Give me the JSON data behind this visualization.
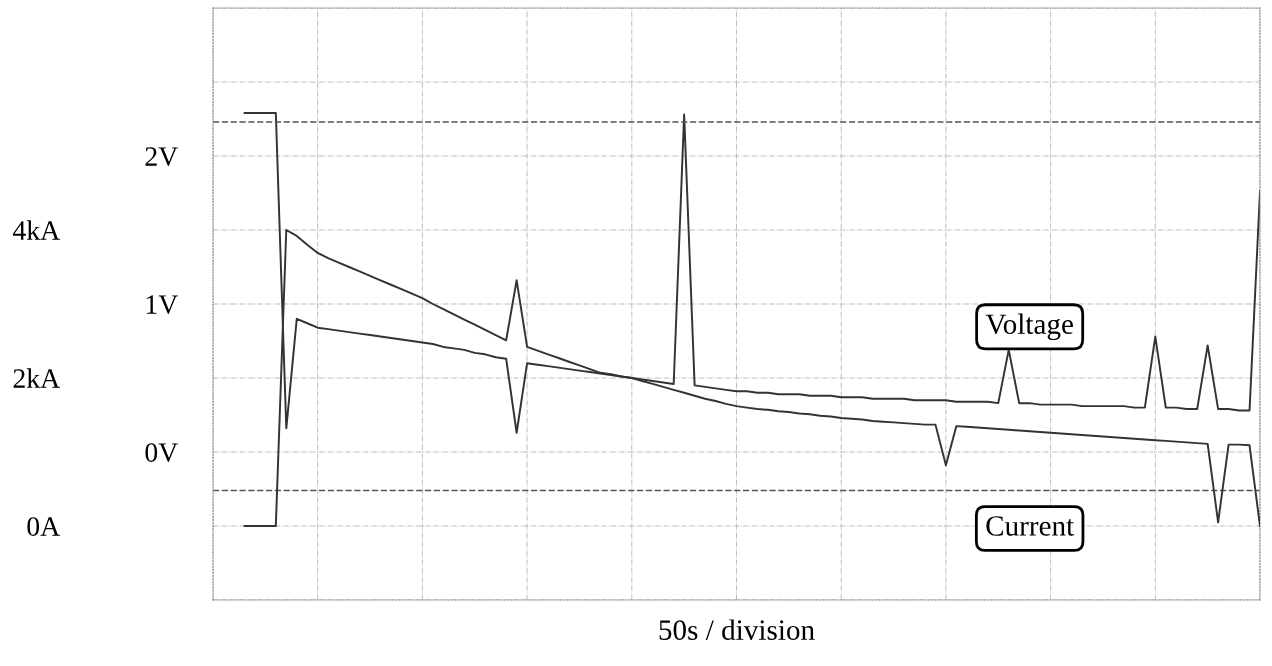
{
  "chart_data": {
    "type": "line",
    "xlabel": "50s / division",
    "categories": [
      null,
      null,
      null,
      null,
      null,
      null,
      null,
      null,
      null,
      null,
      null,
      null,
      null,
      null,
      null,
      null,
      null,
      null,
      null,
      null,
      null,
      null,
      null,
      null,
      null,
      null,
      null,
      null,
      null,
      null,
      null,
      null,
      null,
      null,
      null,
      null,
      null,
      null,
      null,
      null,
      null,
      null,
      null,
      null,
      null,
      null,
      null,
      null,
      null,
      null,
      null,
      null,
      null,
      null,
      null,
      null,
      null,
      null,
      null,
      null,
      null,
      null,
      null,
      null,
      null,
      null,
      null,
      null,
      null,
      null,
      null,
      null,
      null,
      null,
      null,
      null,
      null,
      null,
      null,
      null,
      null,
      null,
      null,
      null,
      null,
      null,
      null,
      null,
      null,
      null,
      null,
      null,
      null,
      null,
      null,
      null,
      null,
      null,
      null,
      null,
      null
    ],
    "ylim": [
      -1,
      3
    ],
    "yticks": [
      {
        "value": -1,
        "label": null
      },
      {
        "value": -0.5,
        "label": null
      },
      {
        "value": 0,
        "label": "0V"
      },
      {
        "value": 0.5,
        "label": null
      },
      {
        "value": 1,
        "label": "1V"
      },
      {
        "value": 1.5,
        "label": null
      },
      {
        "value": 2,
        "label": "2V"
      },
      {
        "value": 2.5,
        "label": null
      },
      {
        "value": 3,
        "label": null
      }
    ],
    "y2lim": [
      -1,
      7
    ],
    "y2ticks": [
      {
        "value": 0,
        "label": "0A"
      },
      {
        "value": 2,
        "label": "2kA"
      },
      {
        "value": 4,
        "label": "4kA"
      }
    ],
    "grid": true,
    "ref_lines": [
      {
        "axis": "y",
        "value": 2.23,
        "line_style": "dashed"
      },
      {
        "axis": "y",
        "value": -0.26,
        "line_style": "dashed"
      }
    ],
    "series": [
      {
        "name": "Voltage",
        "color": "#333333",
        "values": [
          null,
          null,
          null,
          2.29,
          2.29,
          2.29,
          2.29,
          0.16,
          0.9,
          0.87,
          0.84,
          0.83,
          0.82,
          0.81,
          0.8,
          0.79,
          0.78,
          0.77,
          0.76,
          0.75,
          0.74,
          0.73,
          0.71,
          0.7,
          0.69,
          0.67,
          0.66,
          0.64,
          0.63,
          0.13,
          0.6,
          0.59,
          0.58,
          0.57,
          0.56,
          0.55,
          0.54,
          0.53,
          0.52,
          0.51,
          0.5,
          0.49,
          0.48,
          0.47,
          0.46,
          2.28,
          0.45,
          0.44,
          0.43,
          0.42,
          0.41,
          0.41,
          0.4,
          0.4,
          0.39,
          0.39,
          0.39,
          0.38,
          0.38,
          0.38,
          0.37,
          0.37,
          0.37,
          0.36,
          0.36,
          0.36,
          0.36,
          0.35,
          0.35,
          0.35,
          0.35,
          0.34,
          0.34,
          0.34,
          0.34,
          0.33,
          0.69,
          0.33,
          0.33,
          0.32,
          0.32,
          0.32,
          0.32,
          0.31,
          0.31,
          0.31,
          0.31,
          0.31,
          0.3,
          0.3,
          0.78,
          0.3,
          0.3,
          0.29,
          0.29,
          0.72,
          0.29,
          0.29,
          0.28,
          0.28,
          1.76
        ]
      },
      {
        "name": "Current",
        "color": "#333333",
        "axis": "y2",
        "values": [
          null,
          null,
          null,
          0,
          0,
          0,
          0,
          4.0,
          3.92,
          3.8,
          3.69,
          3.62,
          3.56,
          3.5,
          3.44,
          3.38,
          3.32,
          3.26,
          3.2,
          3.14,
          3.08,
          3.0,
          2.93,
          2.86,
          2.79,
          2.72,
          2.65,
          2.58,
          2.51,
          3.32,
          2.42,
          2.37,
          2.32,
          2.27,
          2.22,
          2.17,
          2.12,
          2.07,
          2.05,
          2.02,
          2.0,
          1.96,
          1.92,
          1.88,
          1.84,
          1.8,
          1.76,
          1.72,
          1.69,
          1.65,
          1.62,
          1.6,
          1.58,
          1.57,
          1.55,
          1.54,
          1.52,
          1.51,
          1.49,
          1.48,
          1.46,
          1.45,
          1.44,
          1.42,
          1.41,
          1.4,
          1.39,
          1.38,
          1.37,
          1.37,
          0.82,
          1.35,
          1.34,
          1.33,
          1.32,
          1.31,
          1.3,
          1.29,
          1.28,
          1.27,
          1.26,
          1.25,
          1.24,
          1.23,
          1.22,
          1.21,
          1.2,
          1.19,
          1.18,
          1.17,
          1.16,
          1.15,
          1.14,
          1.13,
          1.12,
          1.11,
          0.05,
          1.1,
          1.1,
          1.09,
          0
        ]
      }
    ]
  }
}
